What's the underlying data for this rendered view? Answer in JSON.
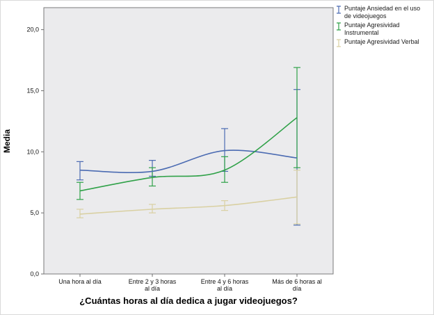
{
  "chart_data": {
    "type": "line",
    "title": "",
    "xlabel": "¿Cuántas horas al día dedica a jugar videojuegos?",
    "ylabel": "Media",
    "ylim": [
      0,
      21.8
    ],
    "yticks": [
      0,
      5,
      10,
      15,
      20
    ],
    "ytick_labels": [
      "0,0",
      "5,0",
      "10,0",
      "15,0",
      "20,0"
    ],
    "categories": [
      "Una hora al día",
      "Entre 2 y 3 horas al día",
      "Entre 4 y 6 horas al día",
      "Más de 6 horas al día"
    ],
    "category_lines": [
      [
        "Una hora al día"
      ],
      [
        "Entre 2 y 3 horas",
        "al día"
      ],
      [
        "Entre 4 y 6 horas",
        "al día"
      ],
      [
        "Más de 6 horas al",
        "día"
      ]
    ],
    "legend_position": "top-right",
    "grid": false,
    "plot_bg": "#ebebed",
    "frame_color": "#7a7a7a",
    "axis_color": "#6e6e6e",
    "error_bars": true,
    "series": [
      {
        "id": "ansiedad",
        "name": "Puntaje Ansiedad en el uso de videojuegos",
        "name_lines": [
          "Puntaje Ansiedad en el uso",
          "de videojuegos"
        ],
        "color": "#4b6bb2",
        "values": [
          8.5,
          8.4,
          10.1,
          9.5
        ],
        "ci_low": [
          7.7,
          8.0,
          8.4,
          4.0
        ],
        "ci_high": [
          9.2,
          9.3,
          11.9,
          15.1
        ]
      },
      {
        "id": "agresividad-instrumental",
        "name": "Puntaje Agresividad Instrumental",
        "name_lines": [
          "Puntaje Agresividad",
          "Instrumental"
        ],
        "color": "#2fa148",
        "values": [
          6.8,
          7.9,
          8.5,
          12.8
        ],
        "ci_low": [
          6.1,
          7.2,
          7.5,
          8.7
        ],
        "ci_high": [
          7.5,
          8.7,
          9.6,
          16.9
        ]
      },
      {
        "id": "agresividad-verbal",
        "name": "Puntaje Agresividad Verbal",
        "name_lines": [
          "Puntaje Agresividad Verbal"
        ],
        "color": "#d9d0a2",
        "values": [
          4.9,
          5.3,
          5.6,
          6.3
        ],
        "ci_low": [
          4.6,
          5.0,
          5.2,
          4.1
        ],
        "ci_high": [
          5.3,
          5.7,
          6.0,
          8.5
        ]
      }
    ]
  }
}
